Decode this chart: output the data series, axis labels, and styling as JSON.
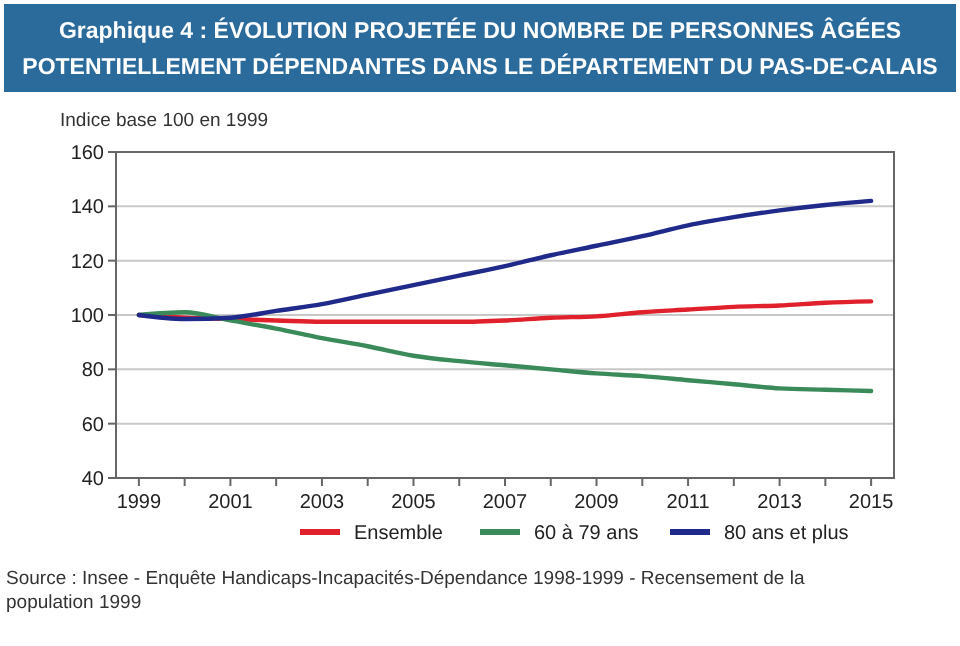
{
  "chart_data": {
    "type": "line",
    "title": "Graphique 4 : ÉVOLUTION PROJETÉE DU NOMBRE DE PERSONNES ÂGÉES POTENTIELLEMENT DÉPENDANTES DANS LE DÉPARTEMENT DU PAS-DE-CALAIS",
    "ylabel": "Indice base 100 en 1999",
    "x": [
      1999,
      2000,
      2001,
      2002,
      2003,
      2004,
      2005,
      2006,
      2007,
      2008,
      2009,
      2010,
      2011,
      2012,
      2013,
      2014,
      2015
    ],
    "series": [
      {
        "name": "Ensemble",
        "color": "#e0202a",
        "values": [
          100,
          99,
          98.5,
          98,
          97.5,
          97.5,
          97.5,
          97.5,
          98,
          99,
          99.5,
          101,
          102,
          103,
          103.5,
          104.5,
          105
        ]
      },
      {
        "name": "60 à 79 ans",
        "color": "#3a8a5a",
        "values": [
          100,
          101,
          98,
          95,
          91.5,
          88.5,
          85,
          83,
          81.5,
          80,
          78.5,
          77.5,
          76,
          74.5,
          73,
          72.5,
          72
        ]
      },
      {
        "name": "80 ans et plus",
        "color": "#1f2a8a",
        "values": [
          100,
          98.5,
          99,
          101.5,
          104,
          107.5,
          111,
          114.5,
          118,
          122,
          125.5,
          129,
          133,
          136,
          138.5,
          140.5,
          142
        ]
      }
    ],
    "xlim": [
      1998.5,
      2015.5
    ],
    "xticks": [
      1999,
      {
        "value": 2000,
        "label": null
      },
      2001,
      {
        "value": 2002,
        "label": null
      },
      2003,
      {
        "value": 2004,
        "label": null
      },
      2005,
      {
        "value": 2006,
        "label": null
      },
      2007,
      {
        "value": 2008,
        "label": null
      },
      2009,
      {
        "value": 2010,
        "label": null
      },
      2011,
      {
        "value": 2012,
        "label": null
      },
      2013,
      {
        "value": 2014,
        "label": null
      },
      2015
    ],
    "ylim": [
      40,
      160
    ],
    "yticks": [
      40,
      60,
      80,
      100,
      120,
      140,
      160
    ],
    "grid": "y",
    "legend": "bottom",
    "marker": "none",
    "line_style": "solid",
    "annotations": [
      "Source : Insee - Enquête Handicaps-Incapacités-Dépendance 1998-1999 - Recensement de la population 1999"
    ]
  }
}
